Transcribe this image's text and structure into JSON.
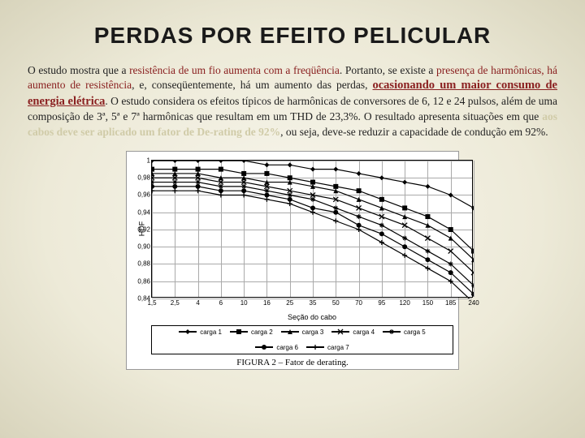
{
  "title": "PERDAS POR EFEITO PELICULAR",
  "paragraph": {
    "t1": "O estudo mostra que a ",
    "h1": "resistência de um fio aumenta com a freqüência",
    "t2": ". Portanto, se existe a ",
    "h2": "presença de harmônicas, há aumento de resistência",
    "t3": ", e, conseqüentemente, há um aumento das perdas, ",
    "h3": "ocasionando um maior consumo de energia elétrica",
    "t4": ". O estudo considera os efeitos típicos de harmônicas de conversores de 6, 12 e 24 pulsos, além de uma composição de 3ª, 5ª e 7ª harmônicas que resultam em um THD de 23,3%. O resultado apresenta situações em que ",
    "h4": "aos cabos deve ser aplicado um fator de De-rating de 92%",
    "t5": ", ou seja, deve-se reduzir a capacidade de condução em 92%."
  },
  "chart": {
    "type": "line",
    "ylabel": "HDF",
    "xlabel": "Seção do cabo",
    "ylim": [
      0.84,
      1.0
    ],
    "yticks": [
      0.84,
      0.86,
      0.88,
      0.9,
      0.92,
      0.94,
      0.96,
      0.98,
      1.0
    ],
    "ytick_labels": [
      "0,84",
      "0,86",
      "0,88",
      "0,90",
      "0,92",
      "0,94",
      "0,96",
      "0,98",
      "1"
    ],
    "xticks": [
      "1,5",
      "2,5",
      "4",
      "6",
      "10",
      "16",
      "25",
      "35",
      "50",
      "70",
      "95",
      "120",
      "150",
      "185",
      "240"
    ],
    "background_color": "#ffffff",
    "grid_color": "#aaaaaa",
    "line_color": "#000000",
    "series": [
      {
        "name": "carga 1",
        "marker": "diamond",
        "y": [
          1.0,
          1.0,
          1.0,
          1.0,
          1.0,
          0.995,
          0.995,
          0.99,
          0.99,
          0.985,
          0.98,
          0.975,
          0.97,
          0.96,
          0.945
        ]
      },
      {
        "name": "carga 2",
        "marker": "square",
        "y": [
          0.99,
          0.99,
          0.99,
          0.99,
          0.985,
          0.985,
          0.98,
          0.975,
          0.97,
          0.965,
          0.955,
          0.945,
          0.935,
          0.92,
          0.895
        ]
      },
      {
        "name": "carga 3",
        "marker": "triangle",
        "y": [
          0.985,
          0.985,
          0.985,
          0.98,
          0.98,
          0.975,
          0.975,
          0.97,
          0.965,
          0.955,
          0.945,
          0.935,
          0.925,
          0.91,
          0.885
        ]
      },
      {
        "name": "carga 4",
        "marker": "x",
        "y": [
          0.98,
          0.98,
          0.98,
          0.975,
          0.975,
          0.97,
          0.965,
          0.96,
          0.955,
          0.945,
          0.935,
          0.925,
          0.91,
          0.895,
          0.87
        ]
      },
      {
        "name": "carga 5",
        "marker": "star",
        "y": [
          0.975,
          0.975,
          0.975,
          0.97,
          0.97,
          0.965,
          0.96,
          0.955,
          0.945,
          0.935,
          0.925,
          0.91,
          0.895,
          0.88,
          0.855
        ]
      },
      {
        "name": "carga 6",
        "marker": "circle",
        "y": [
          0.97,
          0.97,
          0.97,
          0.965,
          0.965,
          0.96,
          0.955,
          0.945,
          0.94,
          0.925,
          0.915,
          0.9,
          0.885,
          0.87,
          0.845
        ]
      },
      {
        "name": "carga 7",
        "marker": "plus",
        "y": [
          0.965,
          0.965,
          0.965,
          0.96,
          0.96,
          0.955,
          0.95,
          0.94,
          0.93,
          0.92,
          0.905,
          0.89,
          0.875,
          0.86,
          0.835
        ]
      }
    ],
    "caption": "FIGURA 2 – Fator de derating."
  }
}
